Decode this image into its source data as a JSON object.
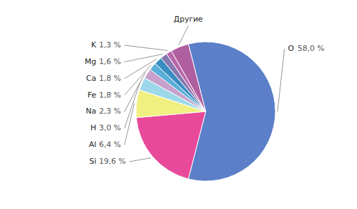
{
  "chart_data": {
    "type": "pie",
    "categories": [
      "O",
      "Si",
      "Al",
      "H",
      "Na",
      "Fe",
      "Ca",
      "Mg",
      "K",
      "Другие"
    ],
    "values": [
      58.0,
      19.6,
      6.4,
      3.0,
      2.3,
      1.8,
      1.8,
      1.6,
      1.3,
      4.2
    ],
    "value_labels": [
      "58,0 %",
      "19,6 %",
      "6,4 %",
      "3,0 %",
      "2,3 %",
      "1,8 %",
      "1,8 %",
      "1,6 %",
      "1,3 %",
      null
    ],
    "colors": [
      "#5B7FC8",
      "#E8499A",
      "#F0EF80",
      "#9DD8EA",
      "#C8A0CC",
      "#5BB0D8",
      "#3A8EC0",
      "#8878B0",
      "#B868A8",
      "#B060A0"
    ],
    "data_labels": true
  }
}
